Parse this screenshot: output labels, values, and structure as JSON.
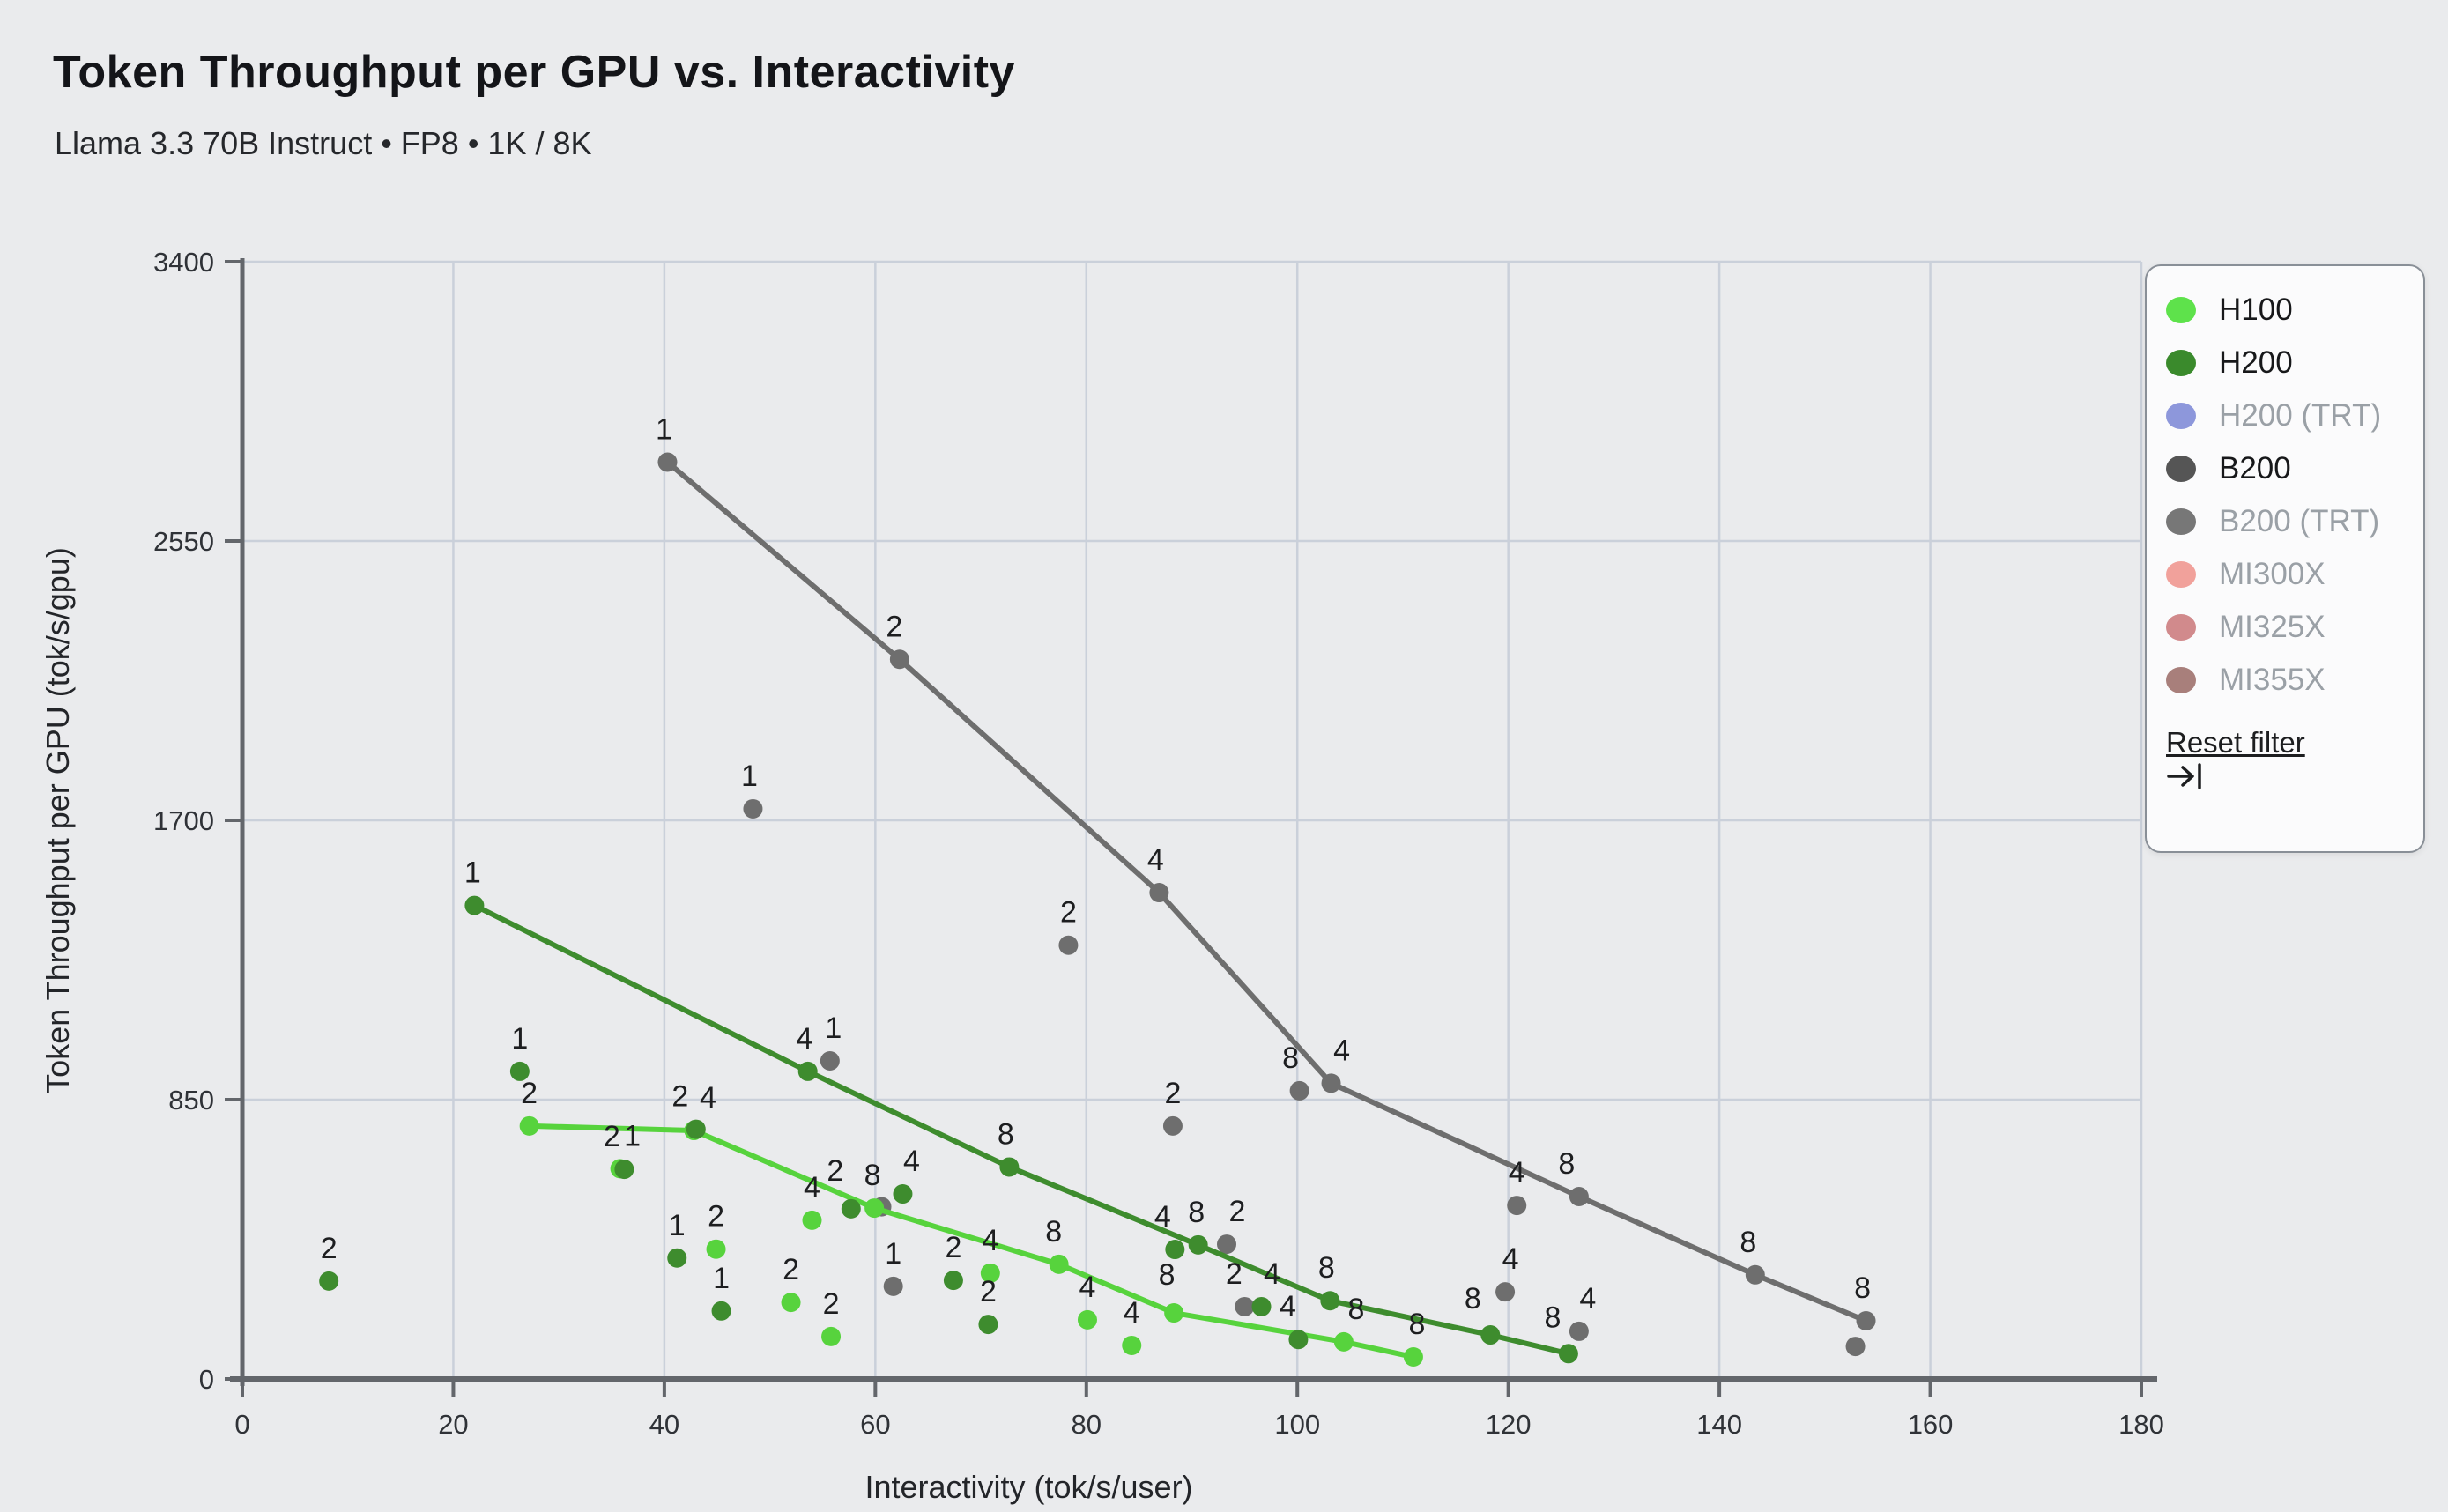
{
  "header": {
    "title": "Token Throughput per GPU vs. Interactivity",
    "subtitle": "Llama 3.3 70B Instruct • FP8 • 1K / 8K"
  },
  "legend": {
    "reset_label": "Reset filter",
    "items": [
      {
        "label": "H100",
        "color": "#5ee24b",
        "active": true
      },
      {
        "label": "H200",
        "color": "#3a8a2c",
        "active": true
      },
      {
        "label": "H200 (TRT)",
        "color": "#8d97db",
        "active": false
      },
      {
        "label": "B200",
        "color": "#555555",
        "active": true
      },
      {
        "label": "B200 (TRT)",
        "color": "#777777",
        "active": false
      },
      {
        "label": "MI300X",
        "color": "#f1a19b",
        "active": false
      },
      {
        "label": "MI325X",
        "color": "#d18a8c",
        "active": false
      },
      {
        "label": "MI355X",
        "color": "#a87f7b",
        "active": false
      }
    ]
  },
  "chart_data": {
    "type": "scatter",
    "title": "Token Throughput per GPU vs. Interactivity",
    "xlabel": "Interactivity (tok/s/user)",
    "ylabel": "Token Throughput per GPU (tok/s/gpu)",
    "xlim": [
      0,
      180
    ],
    "ylim": [
      0,
      3400
    ],
    "xticks": [
      0,
      20,
      40,
      60,
      80,
      100,
      120,
      140,
      160,
      180
    ],
    "yticks": [
      0,
      850,
      1700,
      2550,
      3400
    ],
    "grid": true,
    "point_labels_are": "tensor-parallel size (TP)",
    "series": [
      {
        "name": "B200",
        "color": "#6e6e6e",
        "line": [
          {
            "x": 40.3,
            "y": 2790,
            "label": "1",
            "dx": -4
          },
          {
            "x": 62.3,
            "y": 2190,
            "label": "2",
            "dx": -6
          },
          {
            "x": 86.9,
            "y": 1480,
            "label": "4",
            "dx": -4
          },
          {
            "x": 103.2,
            "y": 900,
            "label": "4",
            "dx": 12
          },
          {
            "x": 126.7,
            "y": 555,
            "label": "8",
            "dx": -14
          },
          {
            "x": 143.4,
            "y": 317,
            "label": "8",
            "dx": -8
          },
          {
            "x": 153.9,
            "y": 177,
            "label": "8",
            "dx": -4
          }
        ],
        "scatter": [
          {
            "x": 48.4,
            "y": 1735,
            "label": "1",
            "dx": -4
          },
          {
            "x": 55.7,
            "y": 968,
            "label": "1",
            "dx": 4
          },
          {
            "x": 60.6,
            "y": 524,
            "label": ""
          },
          {
            "x": 61.7,
            "y": 282,
            "label": "1"
          },
          {
            "x": 78.3,
            "y": 1320,
            "label": "2"
          },
          {
            "x": 88.2,
            "y": 770,
            "label": "2"
          },
          {
            "x": 93.3,
            "y": 410,
            "label": "2",
            "dx": 12
          },
          {
            "x": 95.0,
            "y": 220,
            "label": "2",
            "dx": -12
          },
          {
            "x": 100.2,
            "y": 877,
            "label": "8",
            "dx": -10
          },
          {
            "x": 119.7,
            "y": 265,
            "label": "4",
            "dx": 6
          },
          {
            "x": 120.8,
            "y": 528,
            "label": "4"
          },
          {
            "x": 126.7,
            "y": 145,
            "label": "4",
            "dx": 10
          },
          {
            "x": 152.9,
            "y": 99,
            "label": ""
          }
        ]
      },
      {
        "name": "H100",
        "color": "#57d33d",
        "line": [
          {
            "x": 27.2,
            "y": 770,
            "label": "2"
          },
          {
            "x": 42.8,
            "y": 756,
            "label": "4",
            "dx": 16
          },
          {
            "x": 59.9,
            "y": 520,
            "label": "8",
            "dx": -2
          },
          {
            "x": 77.4,
            "y": 349,
            "label": "8",
            "dx": -6
          },
          {
            "x": 88.3,
            "y": 201,
            "label": "8",
            "dx": -8,
            "dy": -6
          },
          {
            "x": 104.4,
            "y": 113,
            "label": "8",
            "dx": 14
          },
          {
            "x": 111.0,
            "y": 67,
            "label": "8",
            "dx": 4
          }
        ],
        "scatter": [
          {
            "x": 35.8,
            "y": 640,
            "label": "1",
            "dx": 14
          },
          {
            "x": 44.9,
            "y": 395,
            "label": "2"
          },
          {
            "x": 52.0,
            "y": 233,
            "label": "2"
          },
          {
            "x": 54.0,
            "y": 483,
            "label": "4"
          },
          {
            "x": 55.8,
            "y": 129,
            "label": "2"
          },
          {
            "x": 70.9,
            "y": 322,
            "label": "4"
          },
          {
            "x": 80.1,
            "y": 180,
            "label": "4"
          },
          {
            "x": 84.3,
            "y": 102,
            "label": "4"
          }
        ]
      },
      {
        "name": "H200",
        "color": "#3e8c2e",
        "line": [
          {
            "x": 22.0,
            "y": 1441,
            "label": "1",
            "dx": -2
          },
          {
            "x": 53.6,
            "y": 936,
            "label": "4",
            "dx": -4
          },
          {
            "x": 72.7,
            "y": 645,
            "label": "8",
            "dx": -4
          },
          {
            "x": 90.6,
            "y": 408,
            "label": "8",
            "dx": -2
          },
          {
            "x": 103.1,
            "y": 238,
            "label": "8",
            "dx": -4
          },
          {
            "x": 118.3,
            "y": 134,
            "label": "8",
            "dx": -20,
            "dy": -4
          },
          {
            "x": 125.7,
            "y": 77,
            "label": "8",
            "dx": -18,
            "dy": -4
          }
        ],
        "scatter": [
          {
            "x": 8.2,
            "y": 298,
            "label": "2"
          },
          {
            "x": 26.3,
            "y": 936,
            "label": "1"
          },
          {
            "x": 36.2,
            "y": 638,
            "label": "2",
            "dx": -14
          },
          {
            "x": 41.2,
            "y": 368,
            "label": "1"
          },
          {
            "x": 43.0,
            "y": 760,
            "label": "2",
            "dx": -18
          },
          {
            "x": 45.4,
            "y": 207,
            "label": "1"
          },
          {
            "x": 57.7,
            "y": 518,
            "label": "2",
            "dx": -18,
            "dy": -6
          },
          {
            "x": 62.6,
            "y": 563,
            "label": "4",
            "dx": 10
          },
          {
            "x": 67.4,
            "y": 300,
            "label": "2"
          },
          {
            "x": 70.7,
            "y": 166,
            "label": "2"
          },
          {
            "x": 88.4,
            "y": 394,
            "label": "4",
            "dx": -14
          },
          {
            "x": 96.6,
            "y": 220,
            "label": "4",
            "dx": 12
          },
          {
            "x": 100.1,
            "y": 120,
            "label": "4",
            "dx": -12
          }
        ]
      }
    ],
    "layout": {
      "plot_left": 275,
      "plot_right": 2430,
      "plot_top": 297,
      "plot_bottom": 1565,
      "grid_color": "#cad0da",
      "axis_color": "#63666b",
      "tick_text_color": "#2f3237",
      "point_label_color": "#1d1e20",
      "dot_radius": 11,
      "line_width": 6
    }
  }
}
